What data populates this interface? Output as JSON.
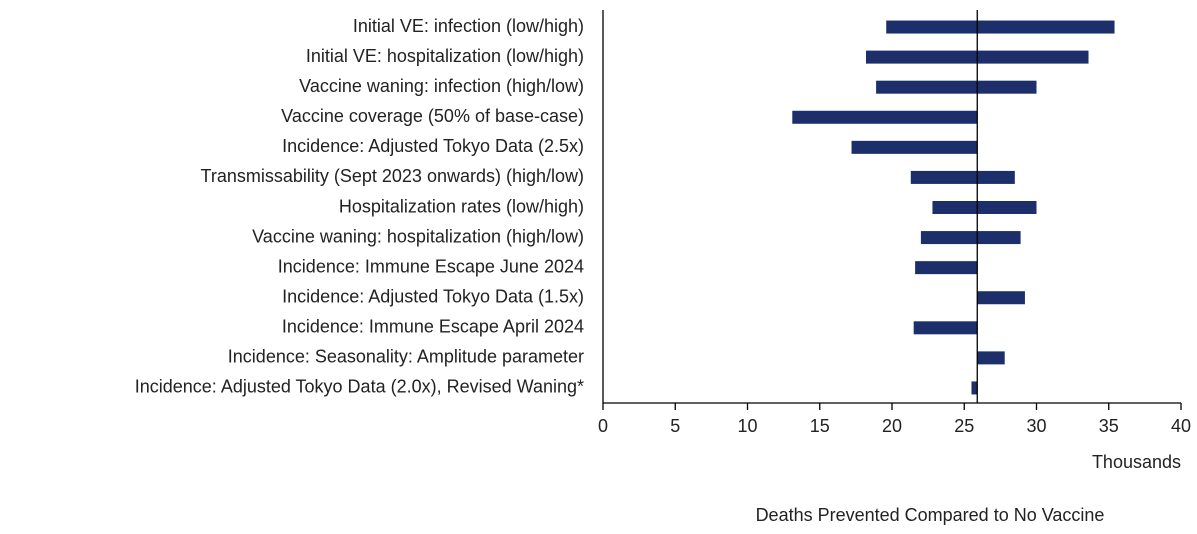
{
  "chart_data": {
    "type": "tornado",
    "categories": [
      "Initial VE: infection (low/high)",
      "Initial VE: hospitalization (low/high)",
      "Vaccine waning: infection (high/low)",
      "Vaccine coverage (50% of base-case)",
      "Incidence: Adjusted Tokyo Data (2.5x)",
      "Transmissability (Sept 2023 onwards) (high/low)",
      "Hospitalization rates (low/high)",
      "Vaccine waning: hospitalization (high/low)",
      "Incidence: Immune Escape June 2024",
      "Incidence: Adjusted Tokyo Data (1.5x)",
      "Incidence: Immune Escape April 2024",
      "Incidence: Seasonality: Amplitude parameter",
      "Incidence: Adjusted Tokyo Data (2.0x), Revised Waning*"
    ],
    "ranges": [
      [
        19.6,
        35.4
      ],
      [
        18.2,
        33.6
      ],
      [
        18.9,
        30.0
      ],
      [
        13.1,
        25.9
      ],
      [
        17.2,
        25.9
      ],
      [
        21.3,
        28.5
      ],
      [
        22.8,
        30.0
      ],
      [
        22.0,
        28.9
      ],
      [
        21.6,
        25.9
      ],
      [
        25.9,
        29.2
      ],
      [
        21.5,
        25.9
      ],
      [
        25.9,
        27.8
      ],
      [
        25.5,
        25.9
      ]
    ],
    "base": 25.9,
    "color": "#1c2f6b",
    "xlim": [
      0,
      40
    ],
    "xticks": [
      0,
      5,
      10,
      15,
      20,
      25,
      30,
      35,
      40
    ],
    "x_unit": "Thousands",
    "x_label": "Deaths Prevented Compared to No Vaccine"
  }
}
